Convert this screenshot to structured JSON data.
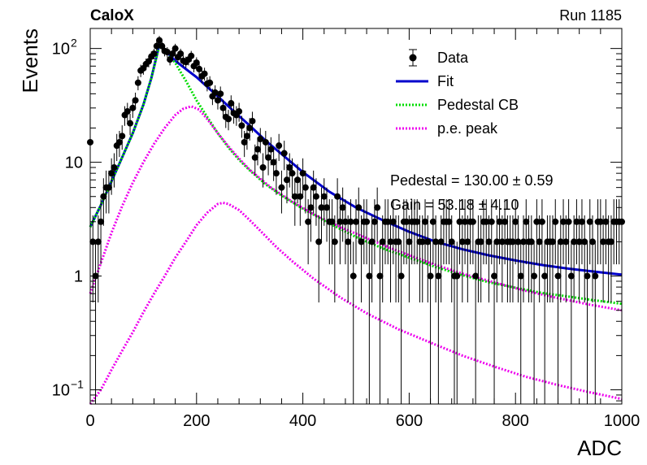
{
  "header": {
    "left": "CaloX",
    "right": "Run 1185"
  },
  "chart_data": {
    "type": "scatter",
    "xlabel": "ADC",
    "ylabel": "Events",
    "xlim": [
      0,
      1000
    ],
    "ylim": [
      0.075,
      150
    ],
    "yscale": "log",
    "grid": false,
    "legend_position": "top-right",
    "x_ticks": [
      "0",
      "200",
      "400",
      "600",
      "800",
      "1000"
    ],
    "y_tick_labels": [
      "10^-1",
      "1",
      "10",
      "10^2"
    ],
    "legend": [
      {
        "label": "Data",
        "style": "marker",
        "color": "#000000"
      },
      {
        "label": "Fit",
        "style": "solid",
        "color": "#0000cc"
      },
      {
        "label": "Pedestal CB",
        "style": "dotted",
        "color": "#00dd00"
      },
      {
        "label": "p.e. peak",
        "style": "dotted",
        "color": "#ee00ee"
      }
    ],
    "annotations": [
      "Pedestal = 130.00 ± 0.59",
      "Gain = 53.18 ± 4.10"
    ],
    "series": [
      {
        "name": "Data",
        "x": [
          0,
          5,
          10,
          15,
          20,
          25,
          30,
          35,
          40,
          45,
          50,
          55,
          60,
          65,
          70,
          75,
          80,
          85,
          90,
          95,
          100,
          105,
          110,
          115,
          120,
          125,
          130,
          135,
          140,
          145,
          150,
          155,
          160,
          165,
          170,
          175,
          180,
          185,
          190,
          195,
          200,
          205,
          210,
          215,
          220,
          225,
          230,
          235,
          240,
          245,
          250,
          255,
          260,
          265,
          270,
          275,
          280,
          285,
          290,
          295,
          300,
          305,
          310,
          315,
          320,
          325,
          330,
          335,
          340,
          345,
          350,
          355,
          360,
          365,
          370,
          375,
          380,
          385,
          390,
          395,
          400,
          405,
          410,
          415,
          420,
          425,
          430,
          435,
          440,
          445,
          450,
          455,
          460,
          465,
          470,
          475,
          480,
          485,
          490,
          495,
          500,
          505,
          510,
          515,
          520,
          525,
          530,
          535,
          540,
          545,
          550,
          555,
          560,
          565,
          570,
          575,
          580,
          585,
          590,
          595,
          600,
          605,
          610,
          615,
          620,
          625,
          630,
          635,
          640,
          645,
          650,
          655,
          660,
          665,
          670,
          675,
          680,
          685,
          690,
          695,
          700,
          705,
          710,
          715,
          720,
          725,
          730,
          735,
          740,
          745,
          750,
          755,
          760,
          765,
          770,
          775,
          780,
          785,
          790,
          795,
          800,
          805,
          810,
          815,
          820,
          825,
          830,
          835,
          840,
          845,
          850,
          855,
          860,
          865,
          870,
          875,
          880,
          885,
          890,
          895,
          900,
          905,
          910,
          915,
          920,
          925,
          930,
          935,
          940,
          945,
          950,
          955,
          960,
          965,
          970,
          975,
          980,
          985,
          990,
          995,
          1000
        ],
        "y": [
          15,
          2,
          1,
          2,
          3,
          5,
          6,
          6,
          8,
          9,
          14,
          15,
          17,
          26,
          28,
          22,
          30,
          35,
          50,
          64,
          67,
          73,
          77,
          85,
          90,
          105,
          118,
          105,
          95,
          93,
          80,
          90,
          100,
          84,
          90,
          78,
          76,
          80,
          86,
          70,
          75,
          66,
          57,
          60,
          49,
          50,
          38,
          41,
          35,
          40,
          30,
          25,
          24,
          33,
          27,
          26,
          28,
          21,
          15,
          17,
          20,
          23,
          11,
          13,
          16,
          9,
          15,
          11,
          13,
          10,
          8,
          14,
          6,
          12,
          7,
          9,
          8,
          5,
          7,
          5,
          8,
          6,
          3,
          4,
          6,
          5,
          2,
          4,
          5,
          4,
          3,
          3,
          2,
          5,
          3,
          4,
          3,
          2,
          3,
          1,
          3,
          4,
          2,
          3,
          3,
          1,
          2,
          3,
          4,
          1,
          2,
          3,
          3,
          2,
          3,
          2,
          2,
          1,
          3,
          3,
          2,
          3,
          3,
          3,
          2,
          2,
          3,
          2,
          1,
          3,
          2,
          1,
          2,
          3,
          3,
          3,
          2,
          1,
          1,
          3,
          2,
          3,
          2,
          3,
          3,
          1,
          2,
          2,
          3,
          3,
          2,
          3,
          1,
          2,
          3,
          2,
          3,
          2,
          2,
          2,
          3,
          2,
          1,
          2,
          3,
          2,
          2,
          1,
          3,
          2,
          3,
          1,
          2,
          2,
          2,
          3,
          1,
          2,
          3,
          2,
          3,
          1,
          2,
          3,
          2,
          3,
          2,
          1,
          3,
          2,
          1,
          3,
          3,
          2,
          3,
          2,
          2,
          3,
          3,
          3,
          3
        ]
      },
      {
        "name": "Fit",
        "x": [
          0,
          20,
          40,
          60,
          80,
          100,
          115,
          130,
          145,
          160,
          180,
          200,
          220,
          240,
          260,
          280,
          300,
          330,
          360,
          400,
          450,
          500,
          550,
          600,
          650,
          700,
          750,
          800,
          850,
          900,
          950,
          1000
        ],
        "y": [
          2.7,
          4.2,
          6.8,
          11,
          18,
          32,
          55,
          108,
          92,
          78,
          66,
          56,
          46,
          38,
          31,
          25.5,
          21,
          15.5,
          11.8,
          8.2,
          5.5,
          4.0,
          3.1,
          2.45,
          2.0,
          1.72,
          1.52,
          1.37,
          1.25,
          1.16,
          1.09,
          1.03
        ]
      },
      {
        "name": "Pedestal CB",
        "x": [
          0,
          20,
          40,
          60,
          80,
          100,
          115,
          130,
          145,
          160,
          170,
          180,
          200,
          220,
          240,
          260,
          280,
          300,
          330,
          360,
          400,
          450,
          500,
          550,
          600,
          650,
          700,
          750,
          800,
          850,
          900,
          950,
          1000
        ],
        "y": [
          2.7,
          4.2,
          6.8,
          11,
          18,
          32,
          55,
          105,
          90,
          75,
          62,
          52,
          35,
          25,
          18,
          13.5,
          10.5,
          8.5,
          6.4,
          5.1,
          3.9,
          2.9,
          2.2,
          1.75,
          1.45,
          1.2,
          1.02,
          0.88,
          0.79,
          0.71,
          0.66,
          0.61,
          0.57
        ]
      },
      {
        "name": "p.e. peak",
        "x": [
          0,
          20,
          40,
          60,
          80,
          100,
          120,
          140,
          160,
          175,
          190,
          205,
          220,
          240,
          260,
          280,
          300,
          340,
          380,
          420,
          470,
          520,
          580,
          640,
          700,
          760,
          820,
          880,
          940,
          1000
        ],
        "y": [
          0.7,
          1.3,
          2.4,
          4.1,
          6.6,
          10,
          14.5,
          20,
          26,
          29.5,
          31,
          29,
          24,
          18,
          13.8,
          10.8,
          8.6,
          6.0,
          4.5,
          3.5,
          2.7,
          2.15,
          1.65,
          1.3,
          1.05,
          0.88,
          0.74,
          0.64,
          0.56,
          0.5
        ]
      },
      {
        "name": "p.e. peak",
        "x": [
          0,
          20,
          40,
          60,
          80,
          100,
          120,
          140,
          160,
          180,
          200,
          220,
          240,
          250,
          260,
          280,
          300,
          320,
          350,
          380,
          420,
          470,
          520,
          580,
          640,
          700,
          760,
          820,
          880,
          940,
          1000
        ],
        "y": [
          0.072,
          0.1,
          0.15,
          0.22,
          0.32,
          0.48,
          0.7,
          1.0,
          1.45,
          2.0,
          2.8,
          3.6,
          4.3,
          4.4,
          4.3,
          3.8,
          3.1,
          2.5,
          1.8,
          1.35,
          0.95,
          0.65,
          0.47,
          0.34,
          0.26,
          0.2,
          0.16,
          0.13,
          0.11,
          0.095,
          0.083
        ]
      }
    ]
  }
}
